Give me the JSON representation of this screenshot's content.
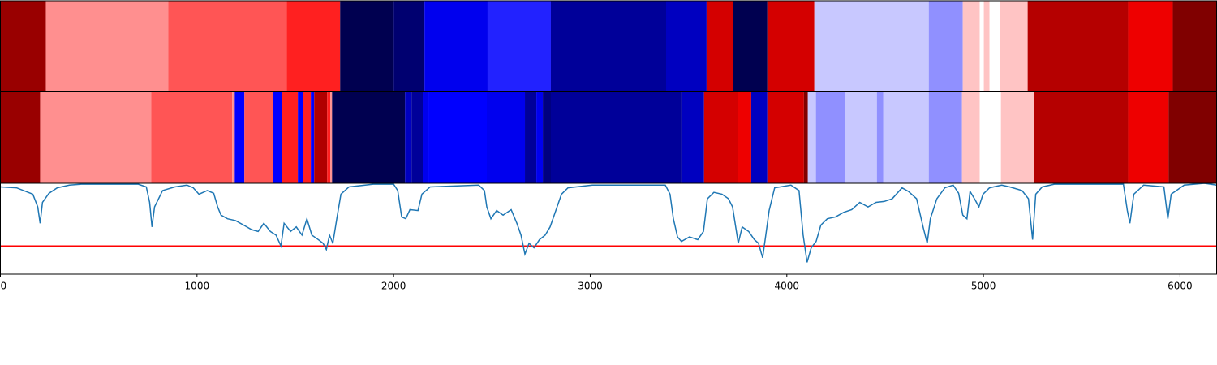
{
  "chart_data": [
    {
      "type": "segments",
      "xlim": [
        0,
        6186
      ],
      "edges": [
        0,
        231,
        854,
        1456,
        1728,
        2000,
        2157,
        2478,
        2800,
        3386,
        3592,
        3728,
        3901,
        4140,
        4722,
        4895,
        4981,
        5002,
        5031,
        5084,
        5225,
        5736,
        5963,
        6186
      ],
      "colors": [
        "#990000",
        "#ff8f8f",
        "#ff5555",
        "#ff2020",
        "#000050",
        "#000070",
        "#0000ee",
        "#2222ff",
        "#000099",
        "#0000c0",
        "#d40000",
        "#000050",
        "#d40000",
        "#c8c8ff",
        "#9090ff",
        "#ffc4c4",
        "#ffffff",
        "#ffc4c4",
        "#ffffff",
        "#ffc4c4",
        "#b50000",
        "#ee0000",
        "#800000"
      ]
    },
    {
      "type": "segments",
      "xlim": [
        0,
        6186
      ],
      "edges": [
        0,
        202,
        767,
        1179,
        1192,
        1241,
        1386,
        1431,
        1513,
        1538,
        1579,
        1596,
        1662,
        1678,
        1687,
        2058,
        2091,
        2148,
        2177,
        2474,
        2668,
        2726,
        2759,
        2800,
        3464,
        3579,
        3753,
        3819,
        3901,
        4087,
        4107,
        4148,
        4297,
        4458,
        4491,
        4722,
        4891,
        4981,
        5089,
        5258,
        5736,
        5942,
        6186
      ],
      "colors": [
        "#990000",
        "#ff8f8f",
        "#ff5555",
        "#ff8f8f",
        "#0000ff",
        "#ff5555",
        "#0000ff",
        "#ff2020",
        "#0000ff",
        "#ff2020",
        "#0000ff",
        "#b00000",
        "#ff2020",
        "#ff8f8f",
        "#000050",
        "#0000c0",
        "#000099",
        "#0000ee",
        "#0000ff",
        "#0000ee",
        "#000099",
        "#0000ee",
        "#000080",
        "#000099",
        "#0000c0",
        "#d40000",
        "#ee0000",
        "#0000c0",
        "#d40000",
        "#800000",
        "#c8c8ff",
        "#9090ff",
        "#c8c8ff",
        "#9090ff",
        "#c8c8ff",
        "#9090ff",
        "#ffc4c4",
        "#ffffff",
        "#ffc4c4",
        "#b50000",
        "#ee0000",
        "#800000"
      ]
    },
    {
      "type": "line",
      "xlim": [
        0,
        6186
      ],
      "ylim": [
        0,
        1
      ],
      "xticks": [
        0,
        1000,
        2000,
        3000,
        4000,
        5000,
        6000
      ],
      "hline": 0.31,
      "hline_color": "#ff0000",
      "x": [
        0,
        82,
        165,
        190,
        202,
        214,
        247,
        289,
        351,
        412,
        701,
        742,
        759,
        771,
        784,
        825,
        887,
        949,
        981,
        1010,
        1052,
        1085,
        1105,
        1122,
        1155,
        1196,
        1237,
        1278,
        1311,
        1340,
        1373,
        1402,
        1427,
        1443,
        1476,
        1505,
        1534,
        1559,
        1584,
        1617,
        1641,
        1658,
        1674,
        1691,
        1711,
        1732,
        1773,
        1897,
        2000,
        2021,
        2041,
        2062,
        2083,
        2124,
        2144,
        2186,
        2433,
        2462,
        2474,
        2495,
        2524,
        2557,
        2598,
        2627,
        2648,
        2668,
        2689,
        2714,
        2742,
        2771,
        2796,
        2825,
        2854,
        2887,
        3011,
        3382,
        3406,
        3423,
        3444,
        3464,
        3505,
        3547,
        3576,
        3596,
        3629,
        3670,
        3703,
        3724,
        3753,
        3773,
        3806,
        3835,
        3856,
        3877,
        3893,
        3910,
        3938,
        4021,
        4062,
        4083,
        4103,
        4124,
        4149,
        4173,
        4206,
        4248,
        4289,
        4330,
        4371,
        4413,
        4454,
        4495,
        4536,
        4557,
        4586,
        4619,
        4660,
        4693,
        4714,
        4730,
        4763,
        4804,
        4846,
        4874,
        4895,
        4916,
        4932,
        4957,
        4977,
        4998,
        5031,
        5093,
        5134,
        5196,
        5229,
        5250,
        5266,
        5299,
        5361,
        5712,
        5732,
        5745,
        5765,
        5815,
        5918,
        5938,
        5955,
        6021,
        6124,
        6186
      ],
      "series": [
        {
          "color": "#1f77b4",
          "values": [
            0.96,
            0.95,
            0.88,
            0.74,
            0.56,
            0.79,
            0.89,
            0.95,
            0.98,
            0.99,
            0.99,
            0.96,
            0.79,
            0.52,
            0.74,
            0.92,
            0.96,
            0.98,
            0.95,
            0.88,
            0.92,
            0.89,
            0.74,
            0.65,
            0.61,
            0.59,
            0.54,
            0.49,
            0.47,
            0.56,
            0.47,
            0.43,
            0.31,
            0.56,
            0.47,
            0.52,
            0.43,
            0.61,
            0.43,
            0.38,
            0.34,
            0.27,
            0.43,
            0.34,
            0.61,
            0.88,
            0.96,
            0.99,
            0.99,
            0.92,
            0.63,
            0.61,
            0.71,
            0.7,
            0.88,
            0.96,
            0.98,
            0.92,
            0.74,
            0.61,
            0.7,
            0.65,
            0.71,
            0.56,
            0.43,
            0.22,
            0.34,
            0.29,
            0.38,
            0.43,
            0.52,
            0.7,
            0.88,
            0.95,
            0.98,
            0.98,
            0.88,
            0.61,
            0.41,
            0.36,
            0.41,
            0.38,
            0.47,
            0.83,
            0.9,
            0.88,
            0.83,
            0.74,
            0.34,
            0.52,
            0.47,
            0.38,
            0.34,
            0.18,
            0.43,
            0.7,
            0.95,
            0.98,
            0.92,
            0.43,
            0.13,
            0.29,
            0.36,
            0.54,
            0.61,
            0.63,
            0.68,
            0.71,
            0.79,
            0.74,
            0.79,
            0.8,
            0.83,
            0.88,
            0.95,
            0.91,
            0.83,
            0.52,
            0.34,
            0.61,
            0.83,
            0.95,
            0.98,
            0.89,
            0.65,
            0.61,
            0.91,
            0.82,
            0.74,
            0.88,
            0.95,
            0.98,
            0.96,
            0.92,
            0.83,
            0.38,
            0.88,
            0.96,
            0.99,
            0.99,
            0.7,
            0.56,
            0.88,
            0.98,
            0.96,
            0.61,
            0.88,
            0.98,
            1.0,
            0.98
          ]
        }
      ]
    }
  ]
}
